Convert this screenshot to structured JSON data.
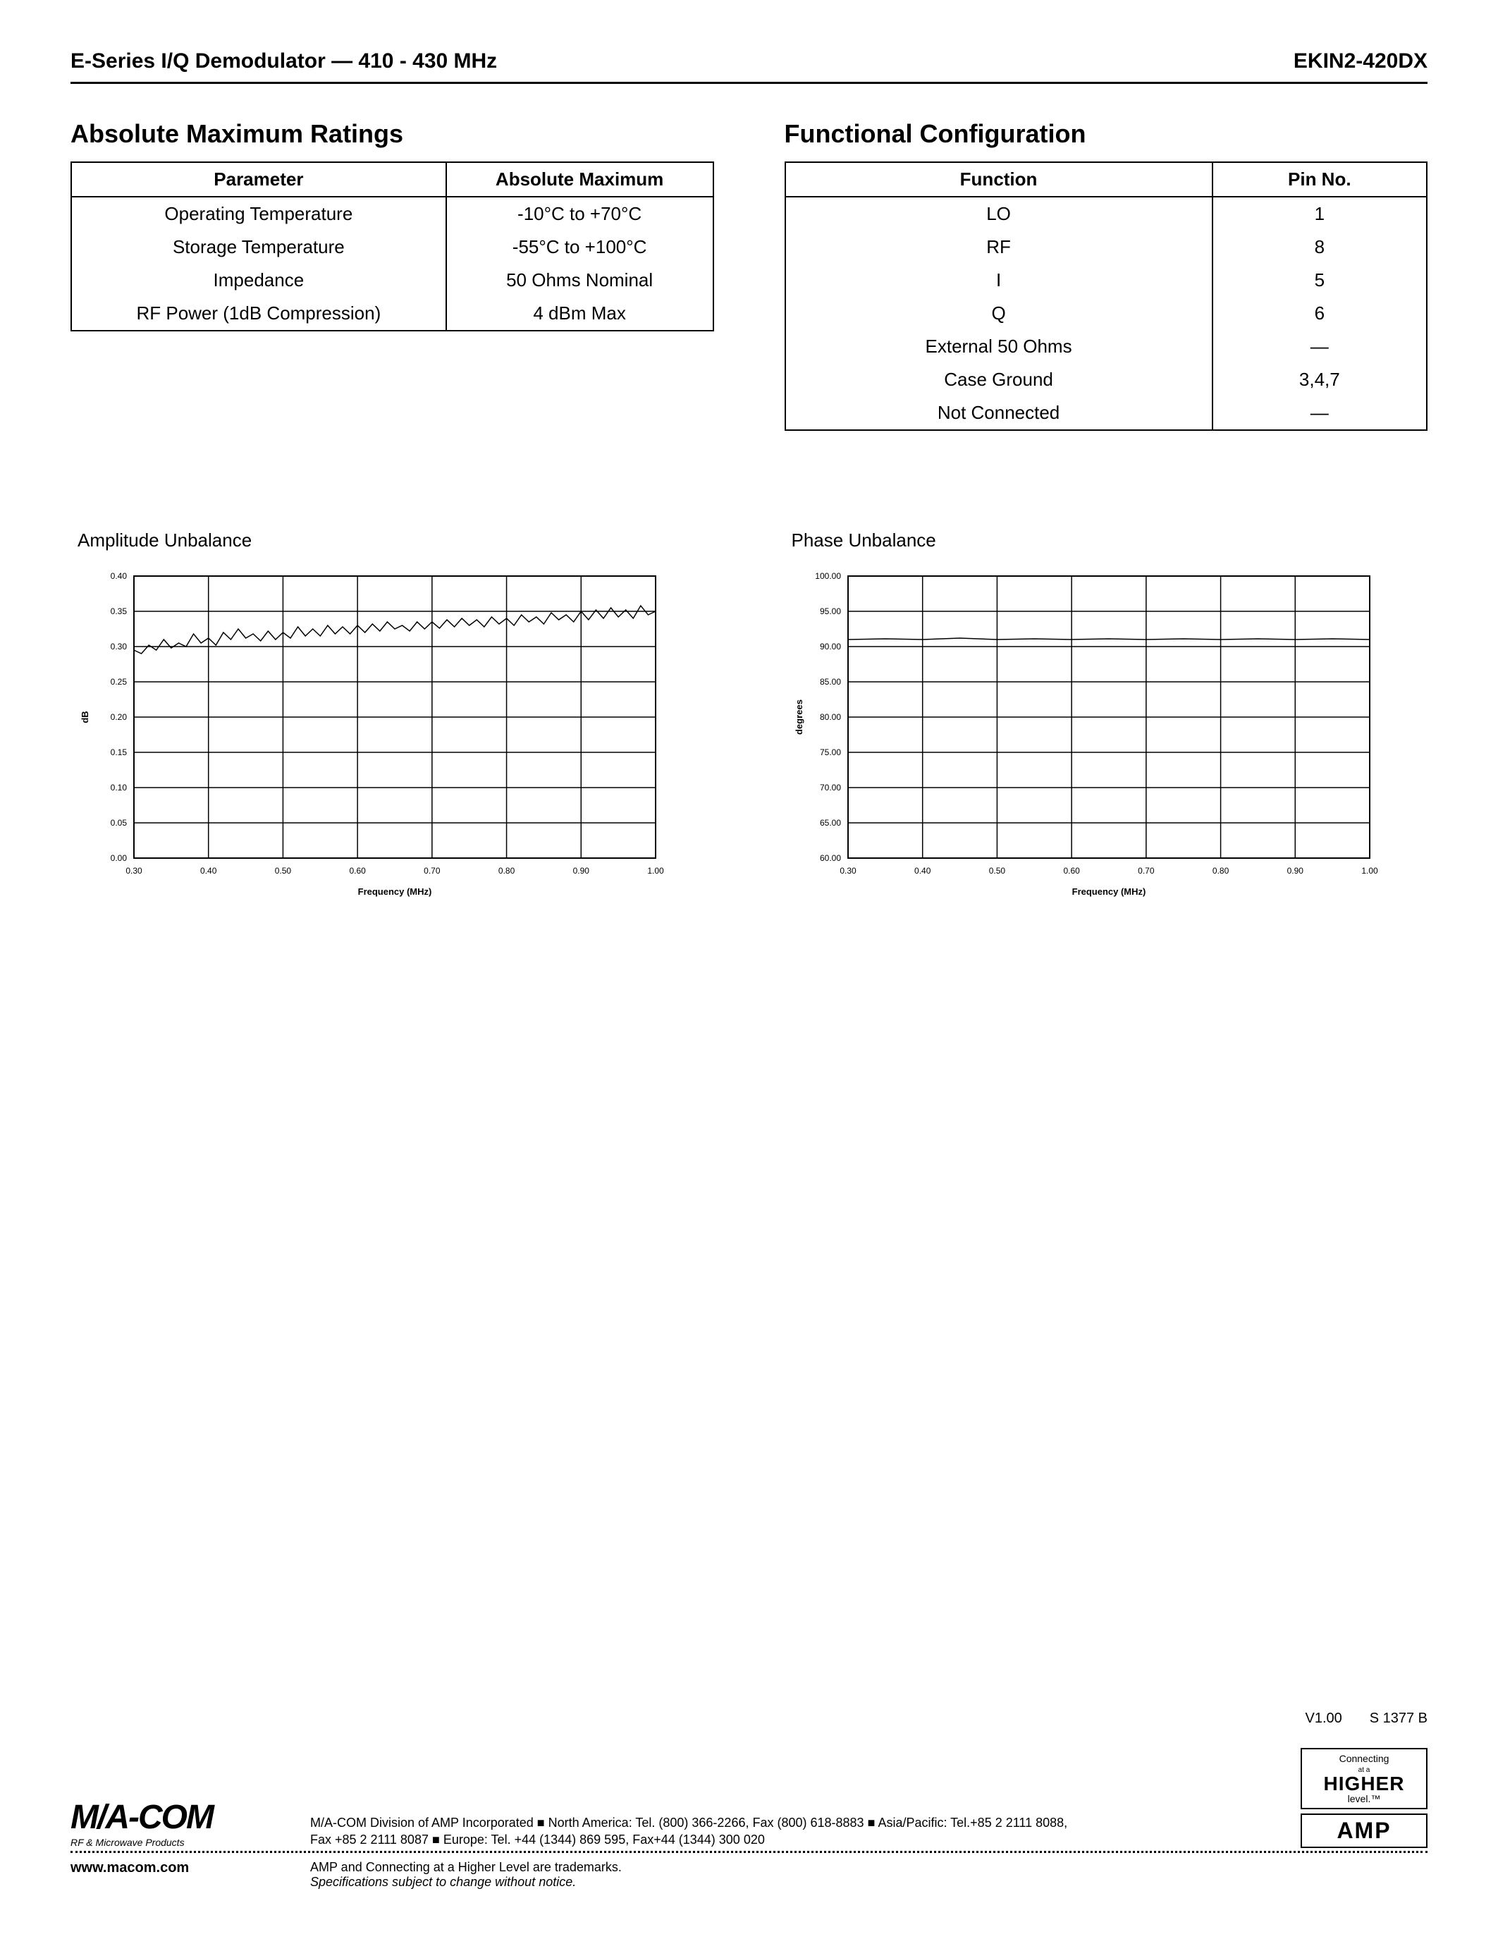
{
  "header": {
    "left": "E-Series I/Q Demodulator — 410 - 430 MHz",
    "right": "EKIN2-420DX"
  },
  "abs_max": {
    "title": "Absolute Maximum Ratings",
    "columns": [
      "Parameter",
      "Absolute Maximum"
    ],
    "rows": [
      [
        "Operating Temperature",
        "-10°C to +70°C"
      ],
      [
        "Storage Temperature",
        "-55°C to +100°C"
      ],
      [
        "Impedance",
        "50 Ohms Nominal"
      ],
      [
        "RF Power (1dB Compression)",
        "4 dBm Max"
      ]
    ]
  },
  "func_config": {
    "title": "Functional Configuration",
    "columns": [
      "Function",
      "Pin No."
    ],
    "rows": [
      [
        "LO",
        "1"
      ],
      [
        "RF",
        "8"
      ],
      [
        "I",
        "5"
      ],
      [
        "Q",
        "6"
      ],
      [
        "External 50 Ohms",
        "—"
      ],
      [
        "Case Ground",
        "3,4,7"
      ],
      [
        "Not Connected",
        "—"
      ]
    ]
  },
  "amplitude_chart": {
    "title": "Amplitude Unbalance",
    "type": "line",
    "xlabel": "Frequency (MHz)",
    "ylabel": "dB",
    "xlim": [
      0.3,
      1.0
    ],
    "ylim": [
      0.0,
      0.4
    ],
    "xticks": [
      "0.30",
      "0.40",
      "0.50",
      "0.60",
      "0.70",
      "0.80",
      "0.90",
      "1.00"
    ],
    "yticks": [
      "0.00",
      "0.05",
      "0.10",
      "0.15",
      "0.20",
      "0.25",
      "0.30",
      "0.35",
      "0.40"
    ],
    "line_color": "#000000",
    "grid_color": "#000000",
    "background_color": "#ffffff",
    "tick_fontsize": 12,
    "label_fontsize": 13,
    "line_width": 1,
    "data": [
      [
        0.3,
        0.295
      ],
      [
        0.31,
        0.29
      ],
      [
        0.32,
        0.302
      ],
      [
        0.33,
        0.295
      ],
      [
        0.34,
        0.31
      ],
      [
        0.35,
        0.298
      ],
      [
        0.36,
        0.305
      ],
      [
        0.37,
        0.3
      ],
      [
        0.38,
        0.318
      ],
      [
        0.39,
        0.305
      ],
      [
        0.4,
        0.312
      ],
      [
        0.41,
        0.302
      ],
      [
        0.42,
        0.32
      ],
      [
        0.43,
        0.31
      ],
      [
        0.44,
        0.325
      ],
      [
        0.45,
        0.312
      ],
      [
        0.46,
        0.318
      ],
      [
        0.47,
        0.308
      ],
      [
        0.48,
        0.322
      ],
      [
        0.49,
        0.31
      ],
      [
        0.5,
        0.32
      ],
      [
        0.51,
        0.312
      ],
      [
        0.52,
        0.328
      ],
      [
        0.53,
        0.315
      ],
      [
        0.54,
        0.325
      ],
      [
        0.55,
        0.315
      ],
      [
        0.56,
        0.33
      ],
      [
        0.57,
        0.318
      ],
      [
        0.58,
        0.328
      ],
      [
        0.59,
        0.318
      ],
      [
        0.6,
        0.33
      ],
      [
        0.61,
        0.32
      ],
      [
        0.62,
        0.332
      ],
      [
        0.63,
        0.322
      ],
      [
        0.64,
        0.335
      ],
      [
        0.65,
        0.325
      ],
      [
        0.66,
        0.33
      ],
      [
        0.67,
        0.322
      ],
      [
        0.68,
        0.335
      ],
      [
        0.69,
        0.325
      ],
      [
        0.7,
        0.335
      ],
      [
        0.71,
        0.326
      ],
      [
        0.72,
        0.338
      ],
      [
        0.73,
        0.328
      ],
      [
        0.74,
        0.34
      ],
      [
        0.75,
        0.33
      ],
      [
        0.76,
        0.338
      ],
      [
        0.77,
        0.328
      ],
      [
        0.78,
        0.342
      ],
      [
        0.79,
        0.332
      ],
      [
        0.8,
        0.34
      ],
      [
        0.81,
        0.33
      ],
      [
        0.82,
        0.345
      ],
      [
        0.83,
        0.335
      ],
      [
        0.84,
        0.342
      ],
      [
        0.85,
        0.332
      ],
      [
        0.86,
        0.348
      ],
      [
        0.87,
        0.338
      ],
      [
        0.88,
        0.345
      ],
      [
        0.89,
        0.335
      ],
      [
        0.9,
        0.35
      ],
      [
        0.91,
        0.338
      ],
      [
        0.92,
        0.352
      ],
      [
        0.93,
        0.34
      ],
      [
        0.94,
        0.355
      ],
      [
        0.95,
        0.342
      ],
      [
        0.96,
        0.352
      ],
      [
        0.97,
        0.34
      ],
      [
        0.98,
        0.358
      ],
      [
        0.99,
        0.345
      ],
      [
        1.0,
        0.35
      ]
    ]
  },
  "phase_chart": {
    "title": "Phase Unbalance",
    "type": "line",
    "xlabel": "Frequency (MHz)",
    "ylabel": "degrees",
    "xlim": [
      0.3,
      1.0
    ],
    "ylim": [
      60.0,
      100.0
    ],
    "xticks": [
      "0.30",
      "0.40",
      "0.50",
      "0.60",
      "0.70",
      "0.80",
      "0.90",
      "1.00"
    ],
    "yticks": [
      "60.00",
      "65.00",
      "70.00",
      "75.00",
      "80.00",
      "85.00",
      "90.00",
      "95.00",
      "100.00"
    ],
    "line_color": "#000000",
    "grid_color": "#000000",
    "background_color": "#ffffff",
    "tick_fontsize": 12,
    "label_fontsize": 13,
    "line_width": 1,
    "data": [
      [
        0.3,
        91.0
      ],
      [
        0.35,
        91.1
      ],
      [
        0.4,
        91.0
      ],
      [
        0.45,
        91.2
      ],
      [
        0.5,
        91.0
      ],
      [
        0.55,
        91.1
      ],
      [
        0.6,
        91.0
      ],
      [
        0.65,
        91.1
      ],
      [
        0.7,
        91.0
      ],
      [
        0.75,
        91.1
      ],
      [
        0.8,
        91.0
      ],
      [
        0.85,
        91.1
      ],
      [
        0.9,
        91.0
      ],
      [
        0.95,
        91.1
      ],
      [
        1.0,
        91.0
      ]
    ]
  },
  "footer": {
    "version": "V1.00",
    "doc_code": "S 1377 B",
    "logo_main": "M/A-COM",
    "logo_sub": "RF & Microwave Products",
    "website": "www.macom.com",
    "contact_line1": "M/A-COM Division of AMP Incorporated ■ North America: Tel. (800) 366-2266, Fax (800) 618-8883 ■ Asia/Pacific: Tel.+85 2 2111 8088,",
    "contact_line2": "Fax +85 2 2111 8087 ■ Europe: Tel. +44 (1344) 869 595, Fax+44 (1344) 300 020",
    "trademark_line": "AMP and Connecting at a Higher Level are trademarks.",
    "spec_line": "Specifications subject to change without notice.",
    "connecting_top": "Connecting",
    "connecting_mid": "at a",
    "connecting_main": "HIGHER",
    "connecting_bottom": "level.™",
    "amp_logo": "AMP"
  }
}
